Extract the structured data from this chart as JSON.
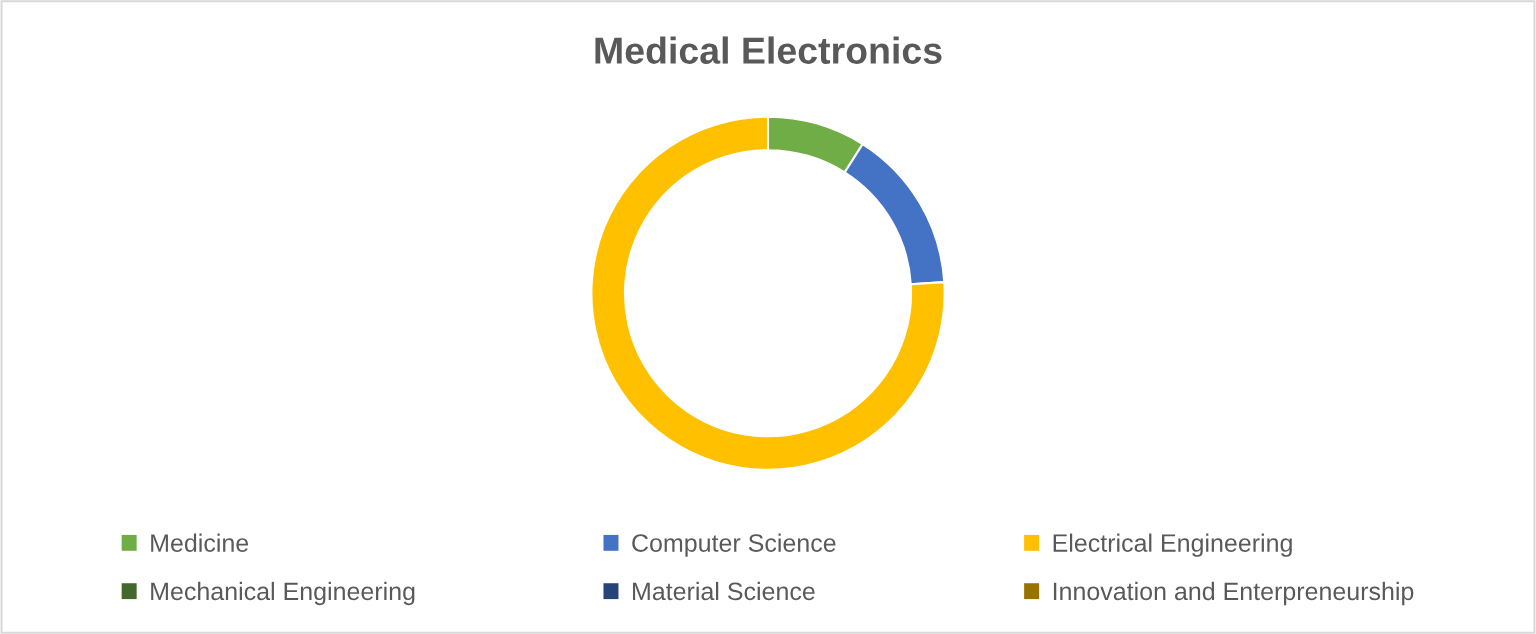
{
  "chart_data": {
    "type": "donut",
    "title": "Medical Electronics",
    "categories": [
      "Medicine",
      "Computer Science",
      "Electrical Engineering",
      "Mechanical Engineering",
      "Material Science",
      "Innovation and Enterpreneurship"
    ],
    "values": [
      9,
      15,
      76,
      0,
      0,
      0
    ],
    "colors": [
      "#70ad47",
      "#4472c4",
      "#ffc000",
      "#43682b",
      "#264478",
      "#997300"
    ],
    "legend": "bottom"
  }
}
